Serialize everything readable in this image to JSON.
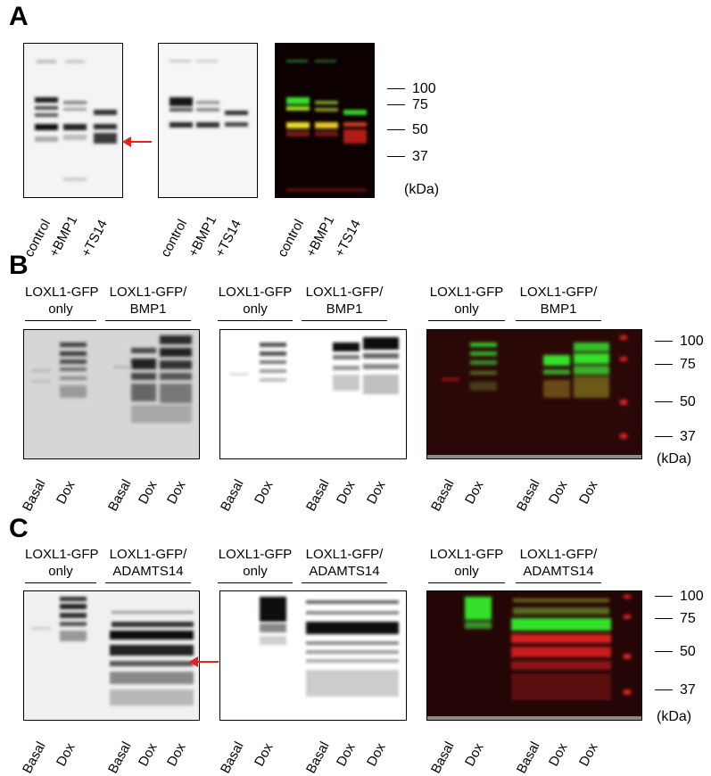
{
  "panels": {
    "a": {
      "letter": "A",
      "lane_labels": [
        "control",
        "+BMP1",
        "+TS14"
      ],
      "markers": [
        "100",
        "75",
        "50",
        "37"
      ],
      "unit": "(kDa)"
    },
    "b": {
      "letter": "B",
      "groups": [
        {
          "line1": "LOXL1-GFP",
          "line2": "only"
        },
        {
          "line1": "LOXL1-GFP/",
          "line2": "BMP1"
        }
      ],
      "lane_labels": [
        "Basal",
        "Dox",
        "Basal",
        "Dox",
        "Dox"
      ],
      "markers": [
        "100",
        "75",
        "50",
        "37"
      ],
      "unit": "(kDa)"
    },
    "c": {
      "letter": "C",
      "groups": [
        {
          "line1": "LOXL1-GFP",
          "line2": "only"
        },
        {
          "line1": "LOXL1-GFP/",
          "line2": "ADAMTS14"
        }
      ],
      "lane_labels": [
        "Basal",
        "Dox",
        "Basal",
        "Dox",
        "Dox"
      ],
      "markers": [
        "100",
        "75",
        "50",
        "37"
      ],
      "unit": "(kDa)"
    }
  },
  "colors": {
    "arrow": "#e8201e",
    "merge_bg": "#1a0000",
    "merge_red": "#d8221e",
    "merge_green": "#35e02a",
    "merge_yellow": "#e6e02a"
  }
}
